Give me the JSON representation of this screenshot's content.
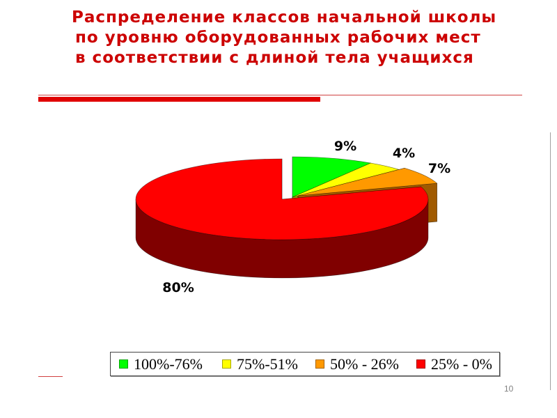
{
  "slide": {
    "page_number": "10"
  },
  "colors": {
    "title": "#cc0000",
    "accent_bar": "#e00000",
    "accent_line": "#d04040",
    "divider": "#a0a0a0",
    "page_number": "#808080"
  },
  "chart_data": {
    "type": "pie",
    "three_d": true,
    "title": [
      "Распределение классов начальной школы",
      "по уровню оборудованных рабочих мест",
      "в соответствии с длиной тела учащихся"
    ],
    "categories": [
      "100%-76%",
      "75%-51%",
      "50% - 26%",
      "25% - 0%"
    ],
    "values": [
      9,
      4,
      7,
      80
    ],
    "data_labels": [
      "9%",
      "4%",
      "7%",
      "80%"
    ],
    "colors": [
      "#00ff00",
      "#ffff00",
      "#ff9900",
      "#ff0000"
    ],
    "side_colors": [
      "#00a000",
      "#a0a000",
      "#a05a00",
      "#800000"
    ],
    "legend_position": "bottom"
  }
}
